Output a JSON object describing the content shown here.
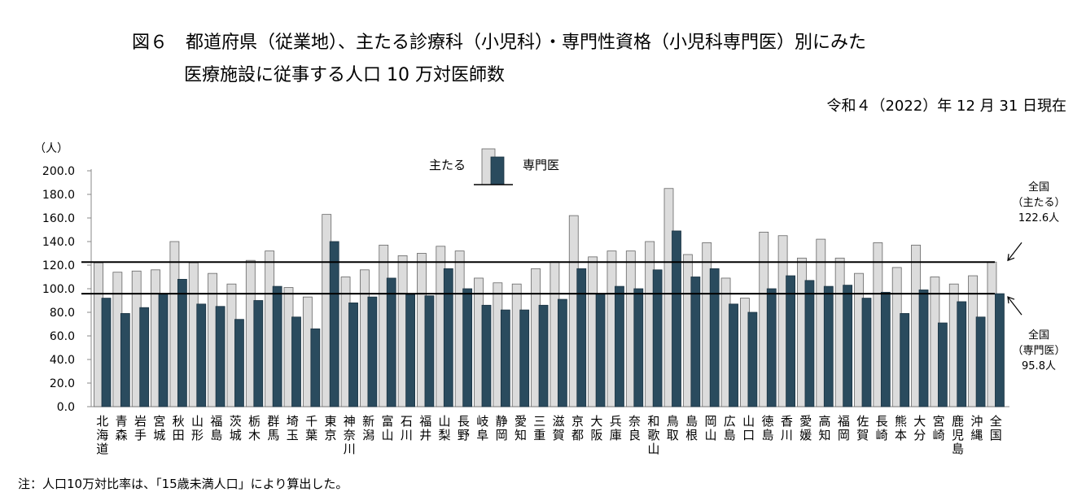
{
  "header": {
    "title_line1": "図６　都道府県（従業地）、主たる診療科（小児科）・専門性資格（小児科専門医）別にみた",
    "title_line2": "医療施設に従事する人口 10 万対医師数",
    "as_of": "令和４（2022）年 12 月 31 日現在"
  },
  "footer": {
    "note": "注：人口10万対比率は、「15歳未満人口」により算出した。"
  },
  "chart_data": {
    "type": "bar",
    "ylabel": "（人）",
    "ylim": [
      0,
      200
    ],
    "yticks": [
      "0.0",
      "20.0",
      "40.0",
      "60.0",
      "80.0",
      "100.0",
      "120.0",
      "140.0",
      "160.0",
      "180.0",
      "200.0"
    ],
    "legend": {
      "position": "top-center",
      "main_label": "主たる",
      "specialist_label": "専門医"
    },
    "categories": [
      [
        "北",
        "海",
        "道"
      ],
      [
        "青",
        "森"
      ],
      [
        "岩",
        "手"
      ],
      [
        "宮",
        "城"
      ],
      [
        "秋",
        "田"
      ],
      [
        "山",
        "形"
      ],
      [
        "福",
        "島"
      ],
      [
        "茨",
        "城"
      ],
      [
        "栃",
        "木"
      ],
      [
        "群",
        "馬"
      ],
      [
        "埼",
        "玉"
      ],
      [
        "千",
        "葉"
      ],
      [
        "東",
        "京"
      ],
      [
        "神",
        "奈",
        "川"
      ],
      [
        "新",
        "潟"
      ],
      [
        "富",
        "山"
      ],
      [
        "石",
        "川"
      ],
      [
        "福",
        "井"
      ],
      [
        "山",
        "梨"
      ],
      [
        "長",
        "野"
      ],
      [
        "岐",
        "阜"
      ],
      [
        "静",
        "岡"
      ],
      [
        "愛",
        "知"
      ],
      [
        "三",
        "重"
      ],
      [
        "滋",
        "賀"
      ],
      [
        "京",
        "都"
      ],
      [
        "大",
        "阪"
      ],
      [
        "兵",
        "庫"
      ],
      [
        "奈",
        "良"
      ],
      [
        "和",
        "歌",
        "山"
      ],
      [
        "鳥",
        "取"
      ],
      [
        "島",
        "根"
      ],
      [
        "岡",
        "山"
      ],
      [
        "広",
        "島"
      ],
      [
        "山",
        "口"
      ],
      [
        "徳",
        "島"
      ],
      [
        "香",
        "川"
      ],
      [
        "愛",
        "媛"
      ],
      [
        "高",
        "知"
      ],
      [
        "福",
        "岡"
      ],
      [
        "佐",
        "賀"
      ],
      [
        "長",
        "崎"
      ],
      [
        "熊",
        "本"
      ],
      [
        "大",
        "分"
      ],
      [
        "宮",
        "崎"
      ],
      [
        "鹿",
        "児",
        "島"
      ],
      [
        "沖",
        "縄"
      ],
      [
        "全",
        "国"
      ]
    ],
    "series": [
      {
        "name": "主たる",
        "color": "#dcdcdc",
        "values": [
          122,
          114,
          115,
          116,
          140,
          122,
          113,
          104,
          124,
          132,
          101,
          93,
          163,
          110,
          116,
          137,
          128,
          130,
          136,
          132,
          109,
          105,
          104,
          117,
          123,
          162,
          127,
          132,
          132,
          140,
          185,
          129,
          139,
          109,
          92,
          148,
          145,
          126,
          142,
          126,
          113,
          139,
          118,
          137,
          110,
          104,
          111,
          122.6
        ]
      },
      {
        "name": "専門医",
        "color": "#2a4b5e",
        "values": [
          92,
          79,
          84,
          96,
          108,
          87,
          85,
          74,
          90,
          102,
          76,
          66,
          140,
          88,
          93,
          109,
          95,
          94,
          117,
          100,
          86,
          82,
          82,
          86,
          91,
          117,
          96,
          102,
          100,
          116,
          149,
          110,
          117,
          87,
          80,
          100,
          111,
          107,
          102,
          103,
          92,
          97,
          79,
          99,
          71,
          89,
          76,
          95.8
        ]
      }
    ],
    "reference_lines": [
      {
        "value": 122.6,
        "label": [
          "全国",
          "（主たる）",
          "122.6人"
        ]
      },
      {
        "value": 95.8,
        "label": [
          "全国",
          "（専門医）",
          "95.8人"
        ]
      }
    ]
  }
}
